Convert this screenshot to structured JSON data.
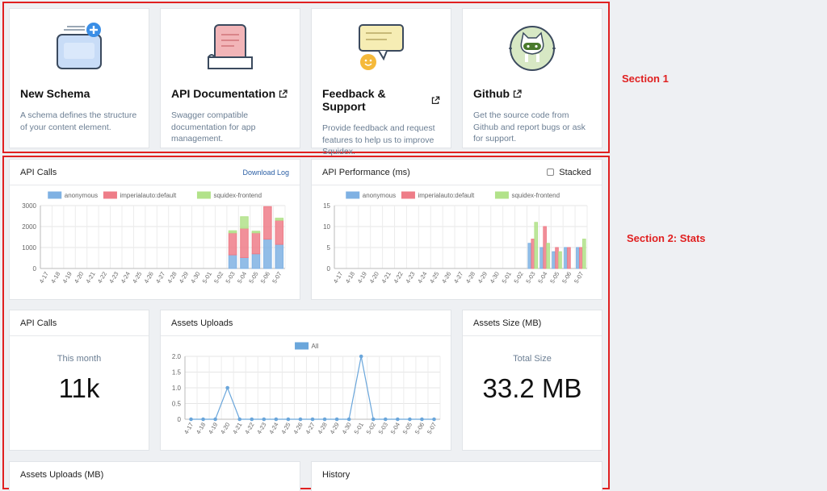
{
  "section1": {
    "annotation": "Section 1",
    "cards": [
      {
        "title": "New Schema",
        "description": "A schema defines the structure of your content element.",
        "external": false,
        "icon": "schema-plus-icon"
      },
      {
        "title": "API Documentation",
        "description": "Swagger compatible documentation for app management.",
        "external": true,
        "icon": "document-icon"
      },
      {
        "title": "Feedback & Support",
        "description": "Provide feedback and request features to help us to improve Squidex.",
        "external": true,
        "icon": "chat-bubbles-icon"
      },
      {
        "title": "Github",
        "description": "Get the source code from Github and report bugs or ask for support.",
        "external": true,
        "icon": "github-octocat-icon"
      }
    ]
  },
  "section2": {
    "annotation": "Section 2: Stats",
    "api_calls_chart": {
      "title": "API Calls",
      "link": "Download Log"
    },
    "api_perf_chart": {
      "title": "API Performance (ms)",
      "stacked_label": "Stacked"
    },
    "api_calls_card": {
      "title": "API Calls",
      "subtitle": "This month",
      "value": "11k"
    },
    "assets_uploads_card": {
      "title": "Assets Uploads"
    },
    "assets_size_card": {
      "title": "Assets Size (MB)",
      "subtitle": "Total Size",
      "value": "33.2 MB"
    },
    "assets_uploads_mb_card": {
      "title": "Assets Uploads (MB)"
    },
    "history_card": {
      "title": "History"
    }
  },
  "chart_data": [
    {
      "type": "bar",
      "stacked": true,
      "categories": [
        "4-17",
        "4-18",
        "4-19",
        "4-20",
        "4-21",
        "4-22",
        "4-23",
        "4-24",
        "4-25",
        "4-26",
        "4-27",
        "4-28",
        "4-29",
        "4-30",
        "5-01",
        "5-02",
        "5-03",
        "5-04",
        "5-05",
        "5-06",
        "5-07"
      ],
      "series": [
        {
          "name": "anonymous",
          "color": "#7fb1e3",
          "values": [
            0,
            0,
            0,
            0,
            0,
            0,
            0,
            0,
            0,
            0,
            0,
            0,
            0,
            0,
            0,
            0,
            650,
            520,
            700,
            1400,
            1150
          ]
        },
        {
          "name": "imperialauto:default",
          "color": "#ee7d88",
          "values": [
            0,
            0,
            0,
            0,
            0,
            0,
            0,
            0,
            0,
            0,
            0,
            0,
            0,
            0,
            0,
            0,
            1050,
            1400,
            1000,
            1550,
            1150
          ]
        },
        {
          "name": "squidex-frontend",
          "color": "#b2e28a",
          "values": [
            0,
            0,
            0,
            0,
            0,
            0,
            0,
            0,
            0,
            0,
            0,
            0,
            0,
            0,
            0,
            0,
            100,
            550,
            80,
            0,
            100
          ]
        }
      ],
      "ylim": [
        0,
        3000
      ],
      "yticks": [
        0,
        1000,
        2000,
        3000
      ],
      "grid": true,
      "legend": "top"
    },
    {
      "type": "bar",
      "stacked": false,
      "categories": [
        "4-17",
        "4-18",
        "4-19",
        "4-20",
        "4-21",
        "4-22",
        "4-23",
        "4-24",
        "4-25",
        "4-26",
        "4-27",
        "4-28",
        "4-29",
        "4-30",
        "5-01",
        "5-02",
        "5-03",
        "5-04",
        "5-05",
        "5-06",
        "5-07"
      ],
      "series": [
        {
          "name": "anonymous",
          "color": "#7fb1e3",
          "values": [
            0,
            0,
            0,
            0,
            0,
            0,
            0,
            0,
            0,
            0,
            0,
            0,
            0,
            0,
            0,
            0,
            6,
            5,
            4,
            5,
            5
          ]
        },
        {
          "name": "imperialauto:default",
          "color": "#ee7d88",
          "values": [
            0,
            0,
            0,
            0,
            0,
            0,
            0,
            0,
            0,
            0,
            0,
            0,
            0,
            0,
            0,
            0,
            7,
            10,
            5,
            5,
            5
          ]
        },
        {
          "name": "squidex-frontend",
          "color": "#b2e28a",
          "values": [
            0,
            0,
            0,
            0,
            0,
            0,
            0,
            0,
            0,
            0,
            0,
            0,
            0,
            0,
            0,
            0,
            11,
            6,
            4,
            0,
            7
          ]
        }
      ],
      "ylim": [
        0,
        15
      ],
      "yticks": [
        0,
        5,
        10,
        15
      ],
      "grid": true,
      "legend": "top"
    },
    {
      "type": "line",
      "categories": [
        "4-17",
        "4-18",
        "4-19",
        "4-20",
        "4-21",
        "4-22",
        "4-23",
        "4-24",
        "4-25",
        "4-26",
        "4-27",
        "4-28",
        "4-29",
        "4-30",
        "5-01",
        "5-02",
        "5-03",
        "5-04",
        "5-05",
        "5-06",
        "5-07"
      ],
      "series": [
        {
          "name": "All",
          "color": "#6aa6db",
          "values": [
            0,
            0,
            0,
            1,
            0,
            0,
            0,
            0,
            0,
            0,
            0,
            0,
            0,
            0,
            2,
            0,
            0,
            0,
            0,
            0,
            0
          ]
        }
      ],
      "ylim": [
        0,
        2
      ],
      "yticks": [
        "0",
        "0.5",
        "1.0",
        "1.5",
        "2.0"
      ],
      "grid": true,
      "legend": "top"
    }
  ]
}
